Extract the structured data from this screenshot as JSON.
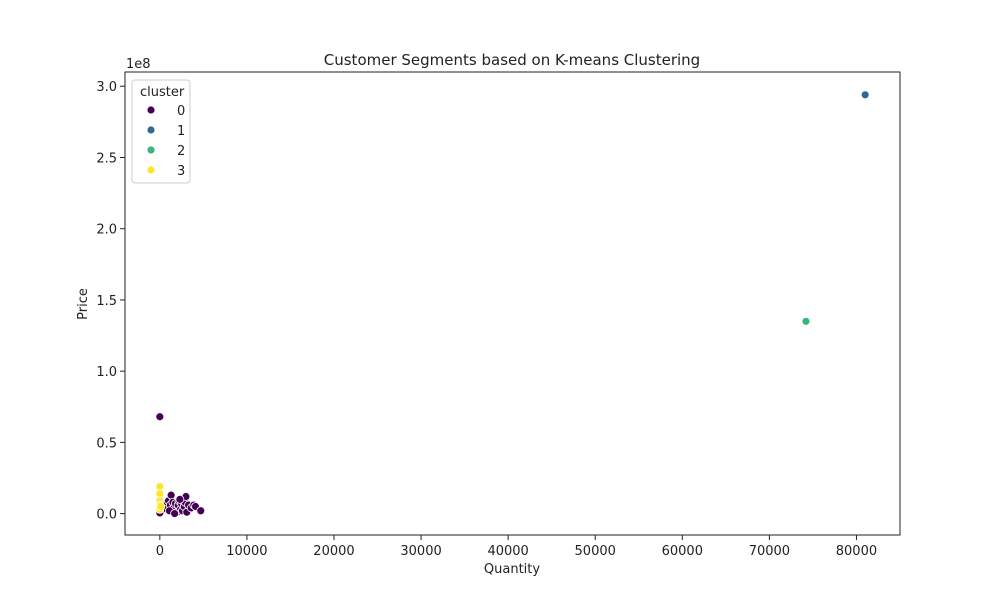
{
  "chart_data": {
    "type": "scatter",
    "title": "Customer Segments based on K-means Clustering",
    "xlabel": "Quantity",
    "ylabel": "Price",
    "y_offset_label": "1e8",
    "xlim": [
      -4000,
      85000
    ],
    "ylim": [
      -0.15,
      3.1
    ],
    "y_scale_note": "y values in units of 1e8",
    "x_ticks": [
      0,
      10000,
      20000,
      30000,
      40000,
      50000,
      60000,
      70000,
      80000
    ],
    "x_tick_labels": [
      "0",
      "10000",
      "20000",
      "30000",
      "40000",
      "50000",
      "60000",
      "70000",
      "80000"
    ],
    "y_ticks": [
      0.0,
      0.5,
      1.0,
      1.5,
      2.0,
      2.5,
      3.0
    ],
    "y_tick_labels": [
      "0.0",
      "0.5",
      "1.0",
      "1.5",
      "2.0",
      "2.5",
      "3.0"
    ],
    "grid": false,
    "legend": {
      "title": "cluster",
      "position": "top-left",
      "entries": [
        "0",
        "1",
        "2",
        "3"
      ]
    },
    "series": [
      {
        "name": "0",
        "color": "#440154",
        "points": [
          [
            0,
            0.68
          ],
          [
            0,
            0.005
          ],
          [
            400,
            0.05
          ],
          [
            600,
            0.07
          ],
          [
            800,
            0.03
          ],
          [
            1000,
            0.09
          ],
          [
            1200,
            0.06
          ],
          [
            1300,
            0.13
          ],
          [
            1400,
            0.02
          ],
          [
            1500,
            0.08
          ],
          [
            1600,
            0.04
          ],
          [
            1800,
            0.07
          ],
          [
            2000,
            0.01
          ],
          [
            2100,
            0.06
          ],
          [
            2200,
            0.09
          ],
          [
            2400,
            0.03
          ],
          [
            2500,
            0.07
          ],
          [
            2600,
            0.02
          ],
          [
            2800,
            0.05
          ],
          [
            2900,
            0.08
          ],
          [
            3000,
            0.12
          ],
          [
            3100,
            0.01
          ],
          [
            3300,
            0.06
          ],
          [
            3600,
            0.04
          ],
          [
            3900,
            0.06
          ],
          [
            4100,
            0.05
          ],
          [
            4700,
            0.02
          ],
          [
            1100,
            0.02
          ],
          [
            2300,
            0.1
          ],
          [
            1700,
            0.0
          ]
        ]
      },
      {
        "name": "1",
        "color": "#31688e",
        "points": [
          [
            81000,
            2.94
          ]
        ]
      },
      {
        "name": "2",
        "color": "#35b779",
        "points": [
          [
            74200,
            1.35
          ]
        ]
      },
      {
        "name": "3",
        "color": "#fde725",
        "points": [
          [
            0,
            0.19
          ],
          [
            0,
            0.14
          ],
          [
            0,
            0.09
          ],
          [
            0,
            0.06
          ],
          [
            0,
            0.03
          ],
          [
            100,
            0.05
          ]
        ]
      }
    ]
  }
}
